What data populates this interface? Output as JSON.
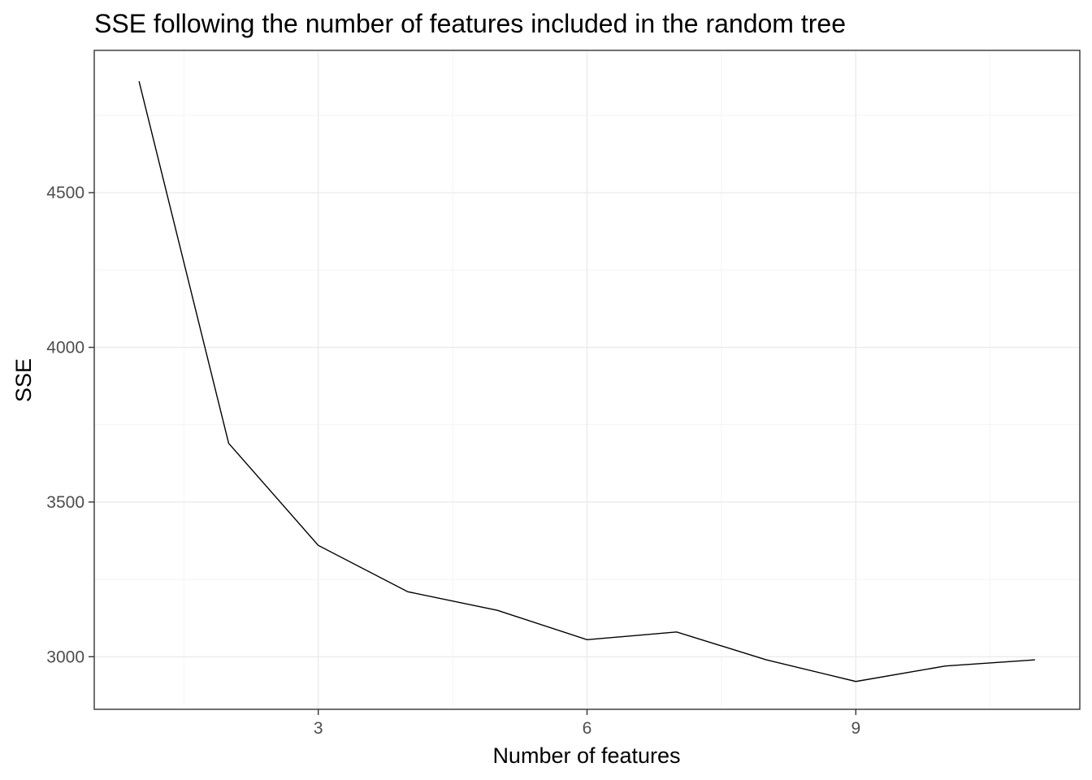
{
  "chart_data": {
    "type": "line",
    "title": "SSE following the number of features included in the random tree",
    "xlabel": "Number of features",
    "ylabel": "SSE",
    "x": [
      1,
      2,
      3,
      4,
      5,
      6,
      7,
      8,
      9,
      10,
      11
    ],
    "series": [
      {
        "values": [
          4860,
          3690,
          3360,
          3210,
          3150,
          3055,
          3080,
          2990,
          2920,
          2970,
          2990
        ]
      }
    ],
    "xlim": [
      0.5,
      11.5
    ],
    "ylim": [
      2830,
      4960
    ],
    "xticks": [
      3,
      6,
      9
    ],
    "xtick_labels": [
      "3",
      "6",
      "9"
    ],
    "xminor": [
      1.5,
      4.5,
      7.5,
      10.5
    ],
    "yticks": [
      3000,
      3500,
      4000,
      4500
    ],
    "ytick_labels": [
      "3000",
      "3500",
      "4000",
      "4500"
    ],
    "yminor": [
      3250,
      3750,
      4250,
      4750
    ],
    "grid": true,
    "legend": "none",
    "line_color": "#000000",
    "theme": "bw"
  }
}
